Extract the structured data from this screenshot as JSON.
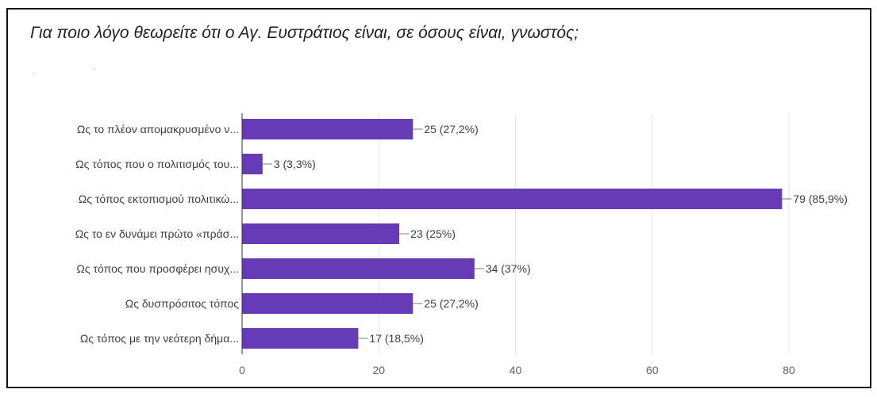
{
  "title": "Για ποιο λόγο θεωρείτε ότι ο Αγ. Ευστράτιος είναι, σε όσους είναι, γνωστός;",
  "colors": {
    "bar": "#673ab7",
    "grid": "#e6e6e6",
    "axis": "#333333",
    "leader": "#777777"
  },
  "chart_data": {
    "type": "bar",
    "orientation": "horizontal",
    "categories": [
      "Ως το πλέον απομακρυσμένο ν...",
      "Ως τόπος που ο πολιτισμός του...",
      "Ως τόπος εκτοπισμού πολιτικώ...",
      "Ως το εν δυνάμει πρώτο «πράσ...",
      "Ως τόπος που προσφέρει ησυχ...",
      "Ως δυσπρόσιτος τόπος",
      "Ως τόπος με την νεότερη δήμα..."
    ],
    "values": [
      25,
      3,
      79,
      23,
      34,
      25,
      17
    ],
    "value_labels": [
      "25 (27,2%)",
      "3 (3,3%)",
      "79 (85,9%)",
      "23 (25%)",
      "34 (37%)",
      "25 (27,2%)",
      "17 (18,5%)"
    ],
    "xlim": [
      0,
      80
    ],
    "xticks": [
      0,
      20,
      40,
      60,
      80
    ],
    "xlabel": "",
    "ylabel": "",
    "grid": true,
    "legend": "none"
  }
}
